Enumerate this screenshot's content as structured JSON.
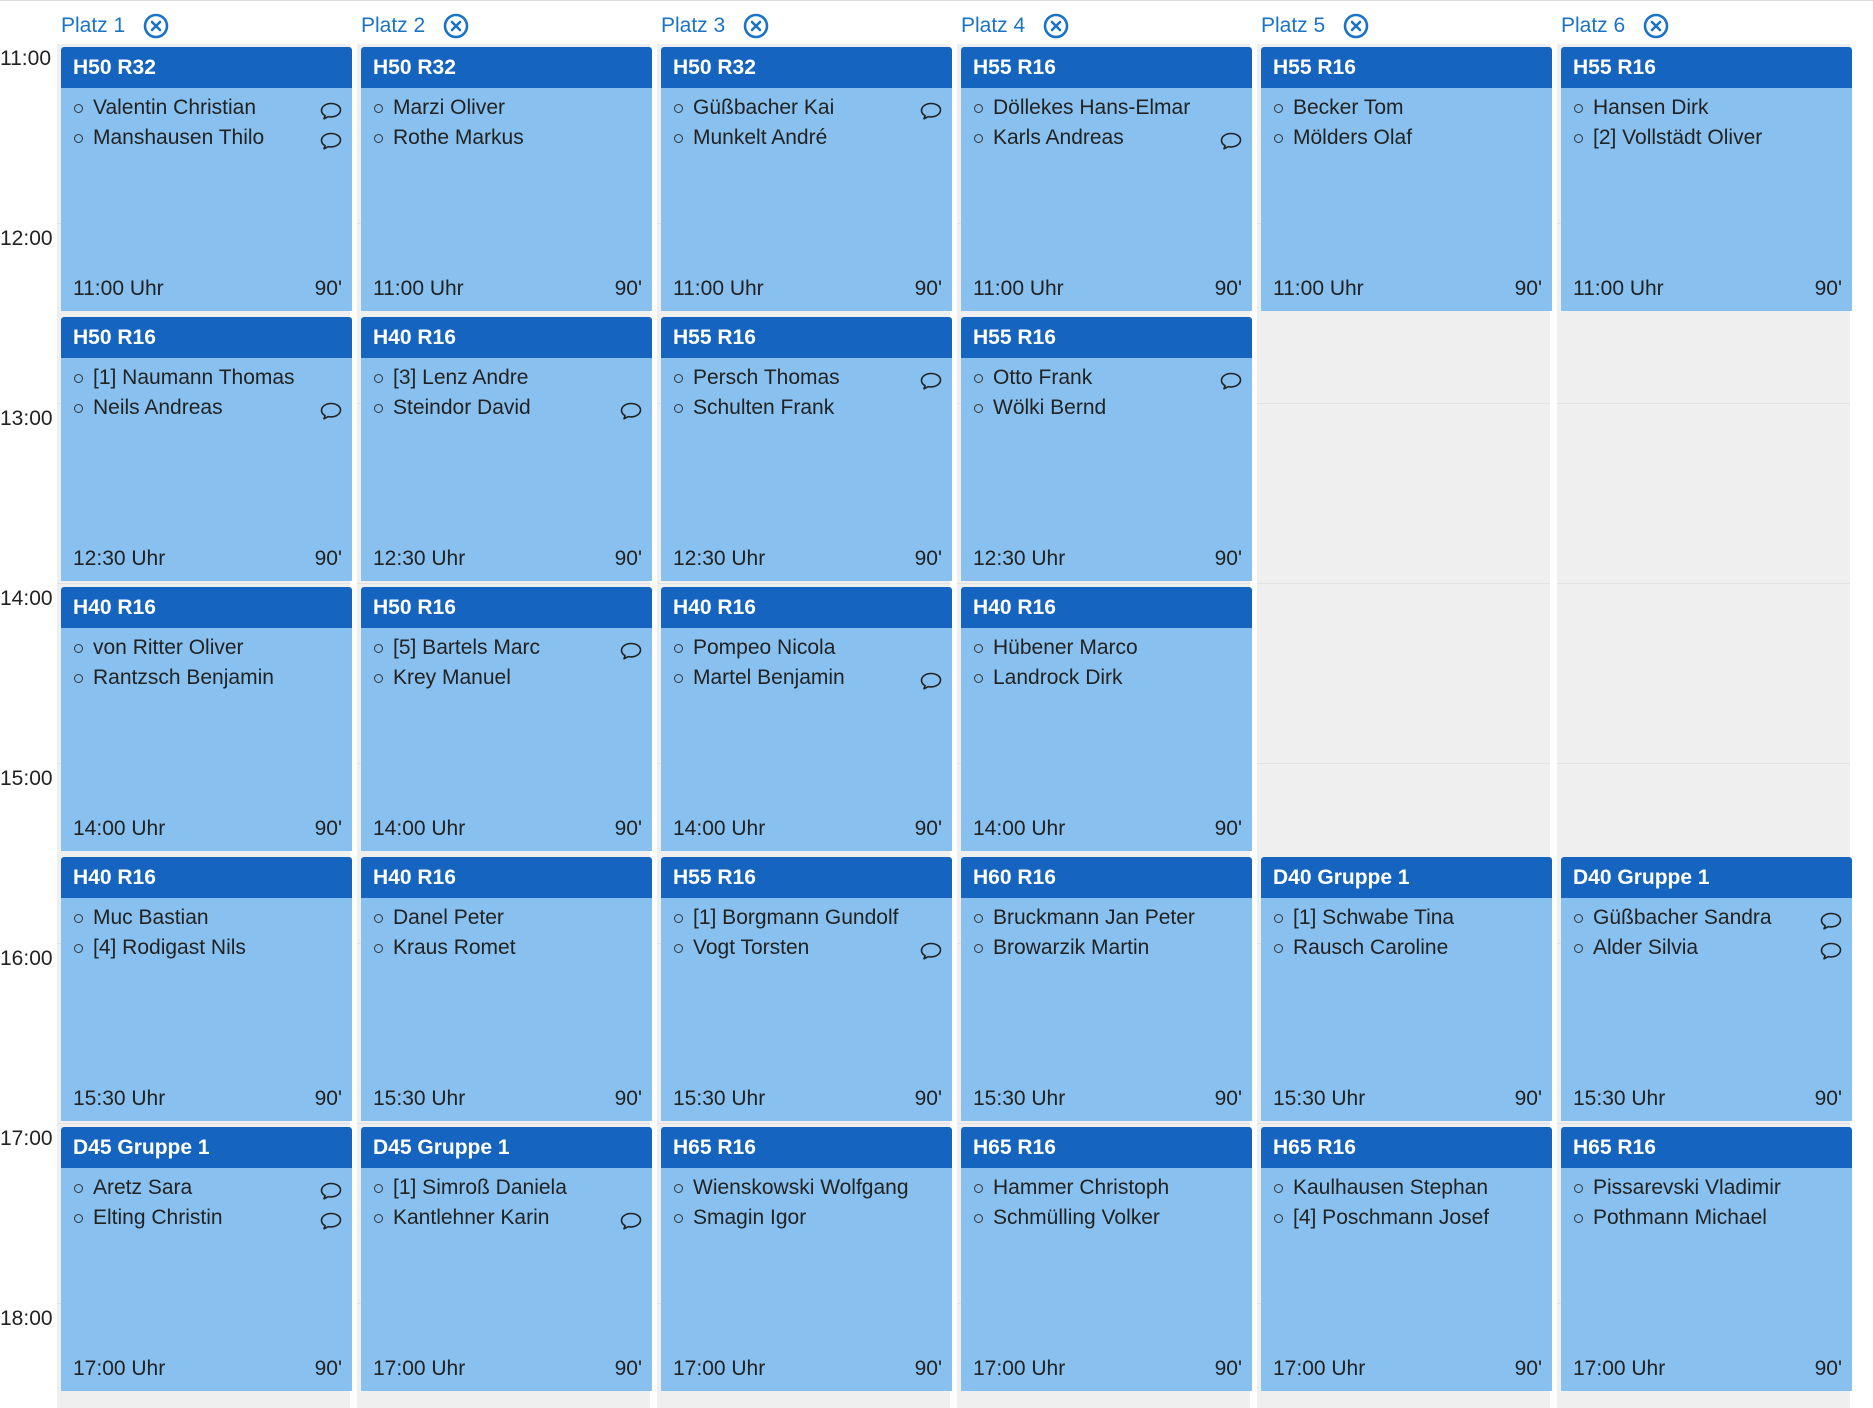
{
  "times": [
    "11:00",
    "12:00",
    "13:00",
    "14:00",
    "15:00",
    "16:00",
    "17:00",
    "18:00"
  ],
  "courts": [
    {
      "name": "Platz 1",
      "matches": [
        {
          "title": "H50 R32",
          "players": [
            {
              "name": "Valentin Christian",
              "comment": true
            },
            {
              "name": "Manshausen Thilo",
              "comment": true
            }
          ],
          "time": "11:00 Uhr",
          "duration": "90'"
        },
        {
          "title": "H50 R16",
          "players": [
            {
              "name": "[1] Naumann Thomas",
              "comment": false
            },
            {
              "name": "Neils Andreas",
              "comment": true
            }
          ],
          "time": "12:30 Uhr",
          "duration": "90'"
        },
        {
          "title": "H40 R16",
          "players": [
            {
              "name": "von Ritter Oliver",
              "comment": false
            },
            {
              "name": "Rantzsch Benjamin",
              "comment": false
            }
          ],
          "time": "14:00 Uhr",
          "duration": "90'"
        },
        {
          "title": "H40 R16",
          "players": [
            {
              "name": "Muc Bastian",
              "comment": false
            },
            {
              "name": "[4] Rodigast Nils",
              "comment": false
            }
          ],
          "time": "15:30 Uhr",
          "duration": "90'"
        },
        {
          "title": "D45 Gruppe 1",
          "players": [
            {
              "name": "Aretz Sara",
              "comment": true
            },
            {
              "name": "Elting Christin",
              "comment": true
            }
          ],
          "time": "17:00 Uhr",
          "duration": "90'"
        }
      ]
    },
    {
      "name": "Platz 2",
      "matches": [
        {
          "title": "H50 R32",
          "players": [
            {
              "name": "Marzi Oliver",
              "comment": false
            },
            {
              "name": "Rothe Markus",
              "comment": false
            }
          ],
          "time": "11:00 Uhr",
          "duration": "90'"
        },
        {
          "title": "H40 R16",
          "players": [
            {
              "name": "[3] Lenz Andre",
              "comment": false
            },
            {
              "name": "Steindor David",
              "comment": true
            }
          ],
          "time": "12:30 Uhr",
          "duration": "90'"
        },
        {
          "title": "H50 R16",
          "players": [
            {
              "name": "[5] Bartels Marc",
              "comment": true
            },
            {
              "name": "Krey Manuel",
              "comment": false
            }
          ],
          "time": "14:00 Uhr",
          "duration": "90'"
        },
        {
          "title": "H40 R16",
          "players": [
            {
              "name": "Danel Peter",
              "comment": false
            },
            {
              "name": "Kraus Romet",
              "comment": false
            }
          ],
          "time": "15:30 Uhr",
          "duration": "90'"
        },
        {
          "title": "D45 Gruppe 1",
          "players": [
            {
              "name": "[1] Simroß Daniela",
              "comment": false
            },
            {
              "name": "Kantlehner Karin",
              "comment": true
            }
          ],
          "time": "17:00 Uhr",
          "duration": "90'"
        }
      ]
    },
    {
      "name": "Platz 3",
      "matches": [
        {
          "title": "H50 R32",
          "players": [
            {
              "name": "Güßbacher Kai",
              "comment": true
            },
            {
              "name": "Munkelt André",
              "comment": false
            }
          ],
          "time": "11:00 Uhr",
          "duration": "90'"
        },
        {
          "title": "H55 R16",
          "players": [
            {
              "name": "Persch Thomas",
              "comment": true
            },
            {
              "name": "Schulten Frank",
              "comment": false
            }
          ],
          "time": "12:30 Uhr",
          "duration": "90'"
        },
        {
          "title": "H40 R16",
          "players": [
            {
              "name": "Pompeo Nicola",
              "comment": false
            },
            {
              "name": "Martel Benjamin",
              "comment": true
            }
          ],
          "time": "14:00 Uhr",
          "duration": "90'"
        },
        {
          "title": "H55 R16",
          "players": [
            {
              "name": "[1] Borgmann Gundolf",
              "comment": false
            },
            {
              "name": "Vogt Torsten",
              "comment": true
            }
          ],
          "time": "15:30 Uhr",
          "duration": "90'"
        },
        {
          "title": "H65 R16",
          "players": [
            {
              "name": "Wienskowski Wolfgang",
              "comment": false
            },
            {
              "name": "Smagin Igor",
              "comment": false
            }
          ],
          "time": "17:00 Uhr",
          "duration": "90'"
        }
      ]
    },
    {
      "name": "Platz 4",
      "matches": [
        {
          "title": "H55 R16",
          "players": [
            {
              "name": "Döllekes Hans-Elmar",
              "comment": false
            },
            {
              "name": "Karls Andreas",
              "comment": true
            }
          ],
          "time": "11:00 Uhr",
          "duration": "90'"
        },
        {
          "title": "H55 R16",
          "players": [
            {
              "name": "Otto Frank",
              "comment": true
            },
            {
              "name": "Wölki Bernd",
              "comment": false
            }
          ],
          "time": "12:30 Uhr",
          "duration": "90'"
        },
        {
          "title": "H40 R16",
          "players": [
            {
              "name": "Hübener Marco",
              "comment": false
            },
            {
              "name": "Landrock Dirk",
              "comment": false
            }
          ],
          "time": "14:00 Uhr",
          "duration": "90'"
        },
        {
          "title": "H60 R16",
          "players": [
            {
              "name": "Bruckmann Jan Peter",
              "comment": false
            },
            {
              "name": "Browarzik Martin",
              "comment": false
            }
          ],
          "time": "15:30 Uhr",
          "duration": "90'"
        },
        {
          "title": "H65 R16",
          "players": [
            {
              "name": "Hammer Christoph",
              "comment": false
            },
            {
              "name": "Schmülling Volker",
              "comment": false
            }
          ],
          "time": "17:00 Uhr",
          "duration": "90'"
        }
      ]
    },
    {
      "name": "Platz 5",
      "matches": [
        {
          "title": "H55 R16",
          "players": [
            {
              "name": "Becker Tom",
              "comment": false
            },
            {
              "name": "Mölders Olaf",
              "comment": false
            }
          ],
          "time": "11:00 Uhr",
          "duration": "90'"
        },
        null,
        null,
        {
          "title": "D40 Gruppe 1",
          "players": [
            {
              "name": "[1] Schwabe Tina",
              "comment": false
            },
            {
              "name": "Rausch Caroline",
              "comment": false
            }
          ],
          "time": "15:30 Uhr",
          "duration": "90'"
        },
        {
          "title": "H65 R16",
          "players": [
            {
              "name": "Kaulhausen Stephan",
              "comment": false
            },
            {
              "name": "[4] Poschmann Josef",
              "comment": false
            }
          ],
          "time": "17:00 Uhr",
          "duration": "90'"
        }
      ]
    },
    {
      "name": "Platz 6",
      "matches": [
        {
          "title": "H55 R16",
          "players": [
            {
              "name": "Hansen Dirk",
              "comment": false
            },
            {
              "name": "[2] Vollstädt Oliver",
              "comment": false
            }
          ],
          "time": "11:00 Uhr",
          "duration": "90'"
        },
        null,
        null,
        {
          "title": "D40 Gruppe 1",
          "players": [
            {
              "name": "Güßbacher Sandra",
              "comment": true
            },
            {
              "name": "Alder Silvia",
              "comment": true
            }
          ],
          "time": "15:30 Uhr",
          "duration": "90'"
        },
        {
          "title": "H65 R16",
          "players": [
            {
              "name": "Pissarevski Vladimir",
              "comment": false
            },
            {
              "name": "Pothmann Michael",
              "comment": false
            }
          ],
          "time": "17:00 Uhr",
          "duration": "90'"
        }
      ]
    }
  ],
  "icons": {
    "court_close": "circle-x-icon",
    "comment": "speech-bubble-icon",
    "player_bullet": "circle-bullet-icon"
  },
  "colors": {
    "match_header": "#1565c0",
    "match_body": "#88c1ef",
    "court_name": "#1a73c8",
    "grid_bg": "#efefef"
  }
}
